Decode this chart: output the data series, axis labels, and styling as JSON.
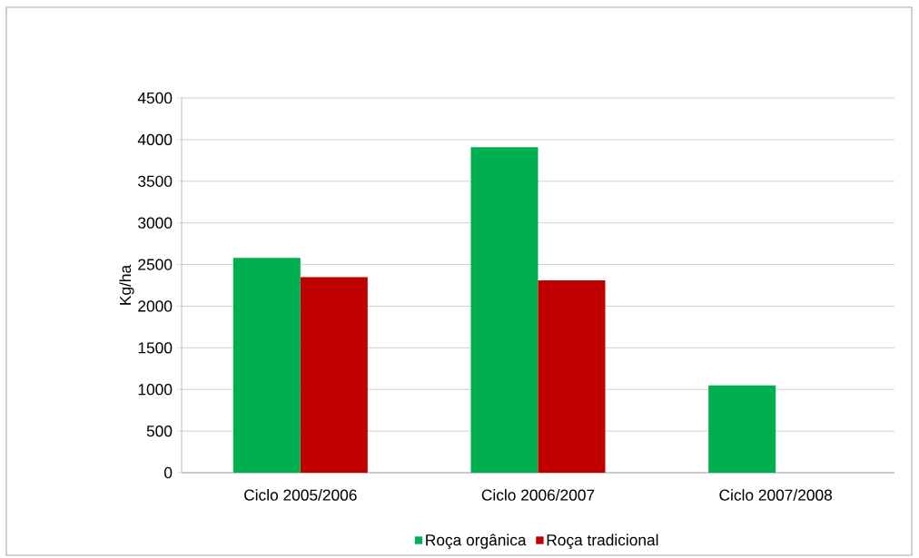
{
  "chart_data": {
    "type": "bar",
    "ylabel": "Kg/ha",
    "categories": [
      "Ciclo 2005/2006",
      "Ciclo 2006/2007",
      "Ciclo 2007/2008"
    ],
    "series": [
      {
        "name": "Roça orgânica",
        "color": "#00b050",
        "values": [
          2580,
          3910,
          1050
        ]
      },
      {
        "name": "Roça tradicional",
        "color": "#c00000",
        "values": [
          2350,
          2310,
          null
        ]
      }
    ],
    "ylim": [
      0,
      4500
    ],
    "yticks": [
      0,
      500,
      1000,
      1500,
      2000,
      2500,
      3000,
      3500,
      4000,
      4500
    ],
    "grid": "y",
    "legend": "bottom"
  }
}
